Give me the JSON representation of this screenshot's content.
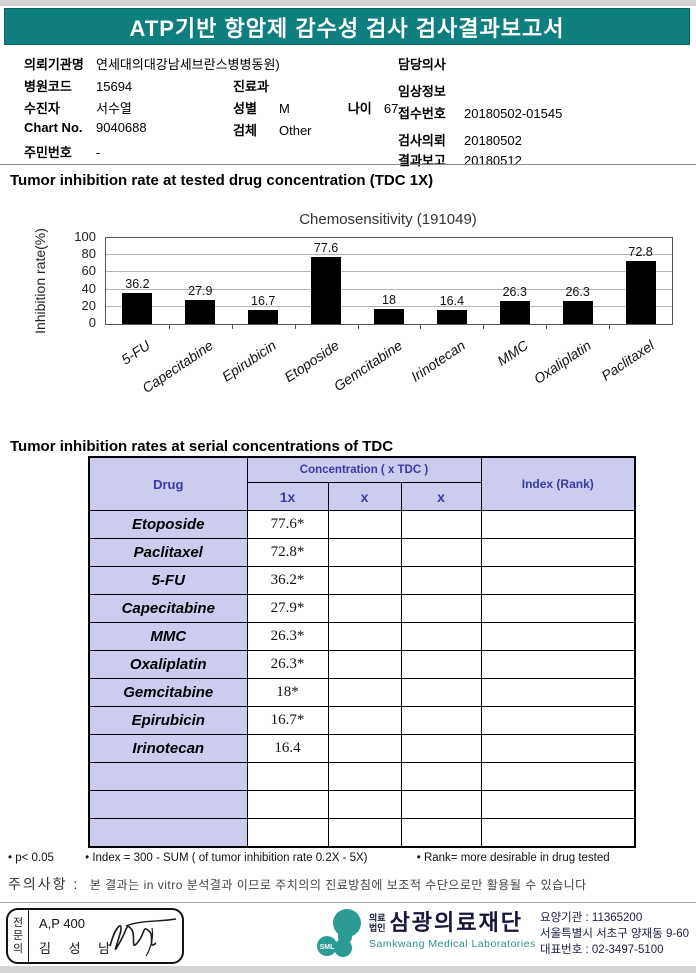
{
  "header": {
    "title": "ATP기반 항암제 감수성 검사 검사결과보고서"
  },
  "patient_info": {
    "left_rows": [
      {
        "label": "의뢰기관명",
        "value": "연세대의대강남세브란스병병동원)"
      },
      {
        "label": "병원코드",
        "value": "15694"
      },
      {
        "label": "수진자",
        "value": "서수열"
      },
      {
        "label": "Chart No.",
        "value": "9040688"
      },
      {
        "label": "주민번호",
        "value": "-"
      }
    ],
    "mid_rows": [
      {
        "label": "진료과",
        "value": ""
      },
      {
        "label": "성별",
        "value": "M",
        "label2": "나이",
        "value2": "67"
      },
      {
        "label": "검체",
        "value": "Other"
      }
    ],
    "right_rows": [
      {
        "label": "담당의사",
        "value": ""
      },
      {
        "label": "임상정보",
        "value": ""
      },
      {
        "label": "접수번호",
        "value": "20180502-01545"
      },
      {
        "label": "검사의뢰",
        "value": "20180502"
      },
      {
        "label": "결과보고",
        "value": "20180512"
      }
    ]
  },
  "section1": {
    "heading": "Tumor inhibition rate at tested drug concentration (TDC 1X)"
  },
  "chart_data": {
    "type": "bar",
    "title": "Chemosensitivity (191049)",
    "ylabel": "Inhibition rate(%)",
    "xlabel": "",
    "categories": [
      "5-FU",
      "Capecitabine",
      "Epirubicin",
      "Etoposide",
      "Gemcitabine",
      "Irinotecan",
      "MMC",
      "Oxaliplatin",
      "Paclitaxel"
    ],
    "values": [
      36.2,
      27.9,
      16.7,
      77.6,
      18,
      16.4,
      26.3,
      26.3,
      72.8
    ],
    "value_labels": [
      "36.2",
      "27.9",
      "16.7",
      "77.6",
      "18",
      "16.4",
      "26.3",
      "26.3",
      "72.8"
    ],
    "ylim": [
      0,
      100
    ],
    "yticks": [
      0,
      20,
      40,
      60,
      80,
      100
    ],
    "grid": true,
    "legend": "none",
    "bar_color": "#000000"
  },
  "section2": {
    "heading": "Tumor inhibition rates at serial concentrations of TDC"
  },
  "table": {
    "header": {
      "drug": "Drug",
      "concentration": "Concentration ( x TDC )",
      "c1": "1x",
      "c2": "x",
      "c3": "x",
      "index": "Index (Rank)"
    },
    "rows": [
      {
        "drug": "Etoposide",
        "c1x": "77.6*",
        "x1": "",
        "x2": "",
        "index": ""
      },
      {
        "drug": "Paclitaxel",
        "c1x": "72.8*",
        "x1": "",
        "x2": "",
        "index": ""
      },
      {
        "drug": "5-FU",
        "c1x": "36.2*",
        "x1": "",
        "x2": "",
        "index": ""
      },
      {
        "drug": "Capecitabine",
        "c1x": "27.9*",
        "x1": "",
        "x2": "",
        "index": ""
      },
      {
        "drug": "MMC",
        "c1x": "26.3*",
        "x1": "",
        "x2": "",
        "index": ""
      },
      {
        "drug": "Oxaliplatin",
        "c1x": "26.3*",
        "x1": "",
        "x2": "",
        "index": ""
      },
      {
        "drug": "Gemcitabine",
        "c1x": "18*",
        "x1": "",
        "x2": "",
        "index": ""
      },
      {
        "drug": "Epirubicin",
        "c1x": "16.7*",
        "x1": "",
        "x2": "",
        "index": ""
      },
      {
        "drug": "Irinotecan",
        "c1x": "16.4",
        "x1": "",
        "x2": "",
        "index": ""
      },
      {
        "drug": "",
        "c1x": "",
        "x1": "",
        "x2": "",
        "index": ""
      },
      {
        "drug": "",
        "c1x": "",
        "x1": "",
        "x2": "",
        "index": ""
      },
      {
        "drug": "",
        "c1x": "",
        "x1": "",
        "x2": "",
        "index": ""
      }
    ]
  },
  "footnotes": {
    "item1": "• p< 0.05",
    "item2": "• Index = 300 - SUM ( of tumor inhibition rate 0.2X  -  5X)",
    "item3": "• Rank= more desirable in drug tested"
  },
  "caution": {
    "label": "주의사항 :",
    "text": "본 결과는 in vitro 분석결과 이므로 주치의의 진료방침에 보조적 수단으로만 활용될 수 있습니다"
  },
  "footer": {
    "certifier": {
      "role": "전문의",
      "line1": "A,P 400",
      "name": "김 성 남"
    },
    "logo": {
      "monogram": "SML",
      "org_type_line1": "의료",
      "org_type_line2": "법인",
      "org_name": "삼광의료재단",
      "org_name_en": "Samkwang Medical Laboratories"
    },
    "contact_lines": [
      "요양기관 : 11365200",
      "서울특별시 서초구 양재동 9-60",
      "대표번호 : 02-3497-5100"
    ]
  },
  "colors": {
    "accent_teal": "#0e7e7e",
    "table_header_bg": "#ccccee",
    "table_header_text": "#3a3aa6",
    "bar_color": "#000000",
    "logo_teal": "#2b9b93"
  }
}
